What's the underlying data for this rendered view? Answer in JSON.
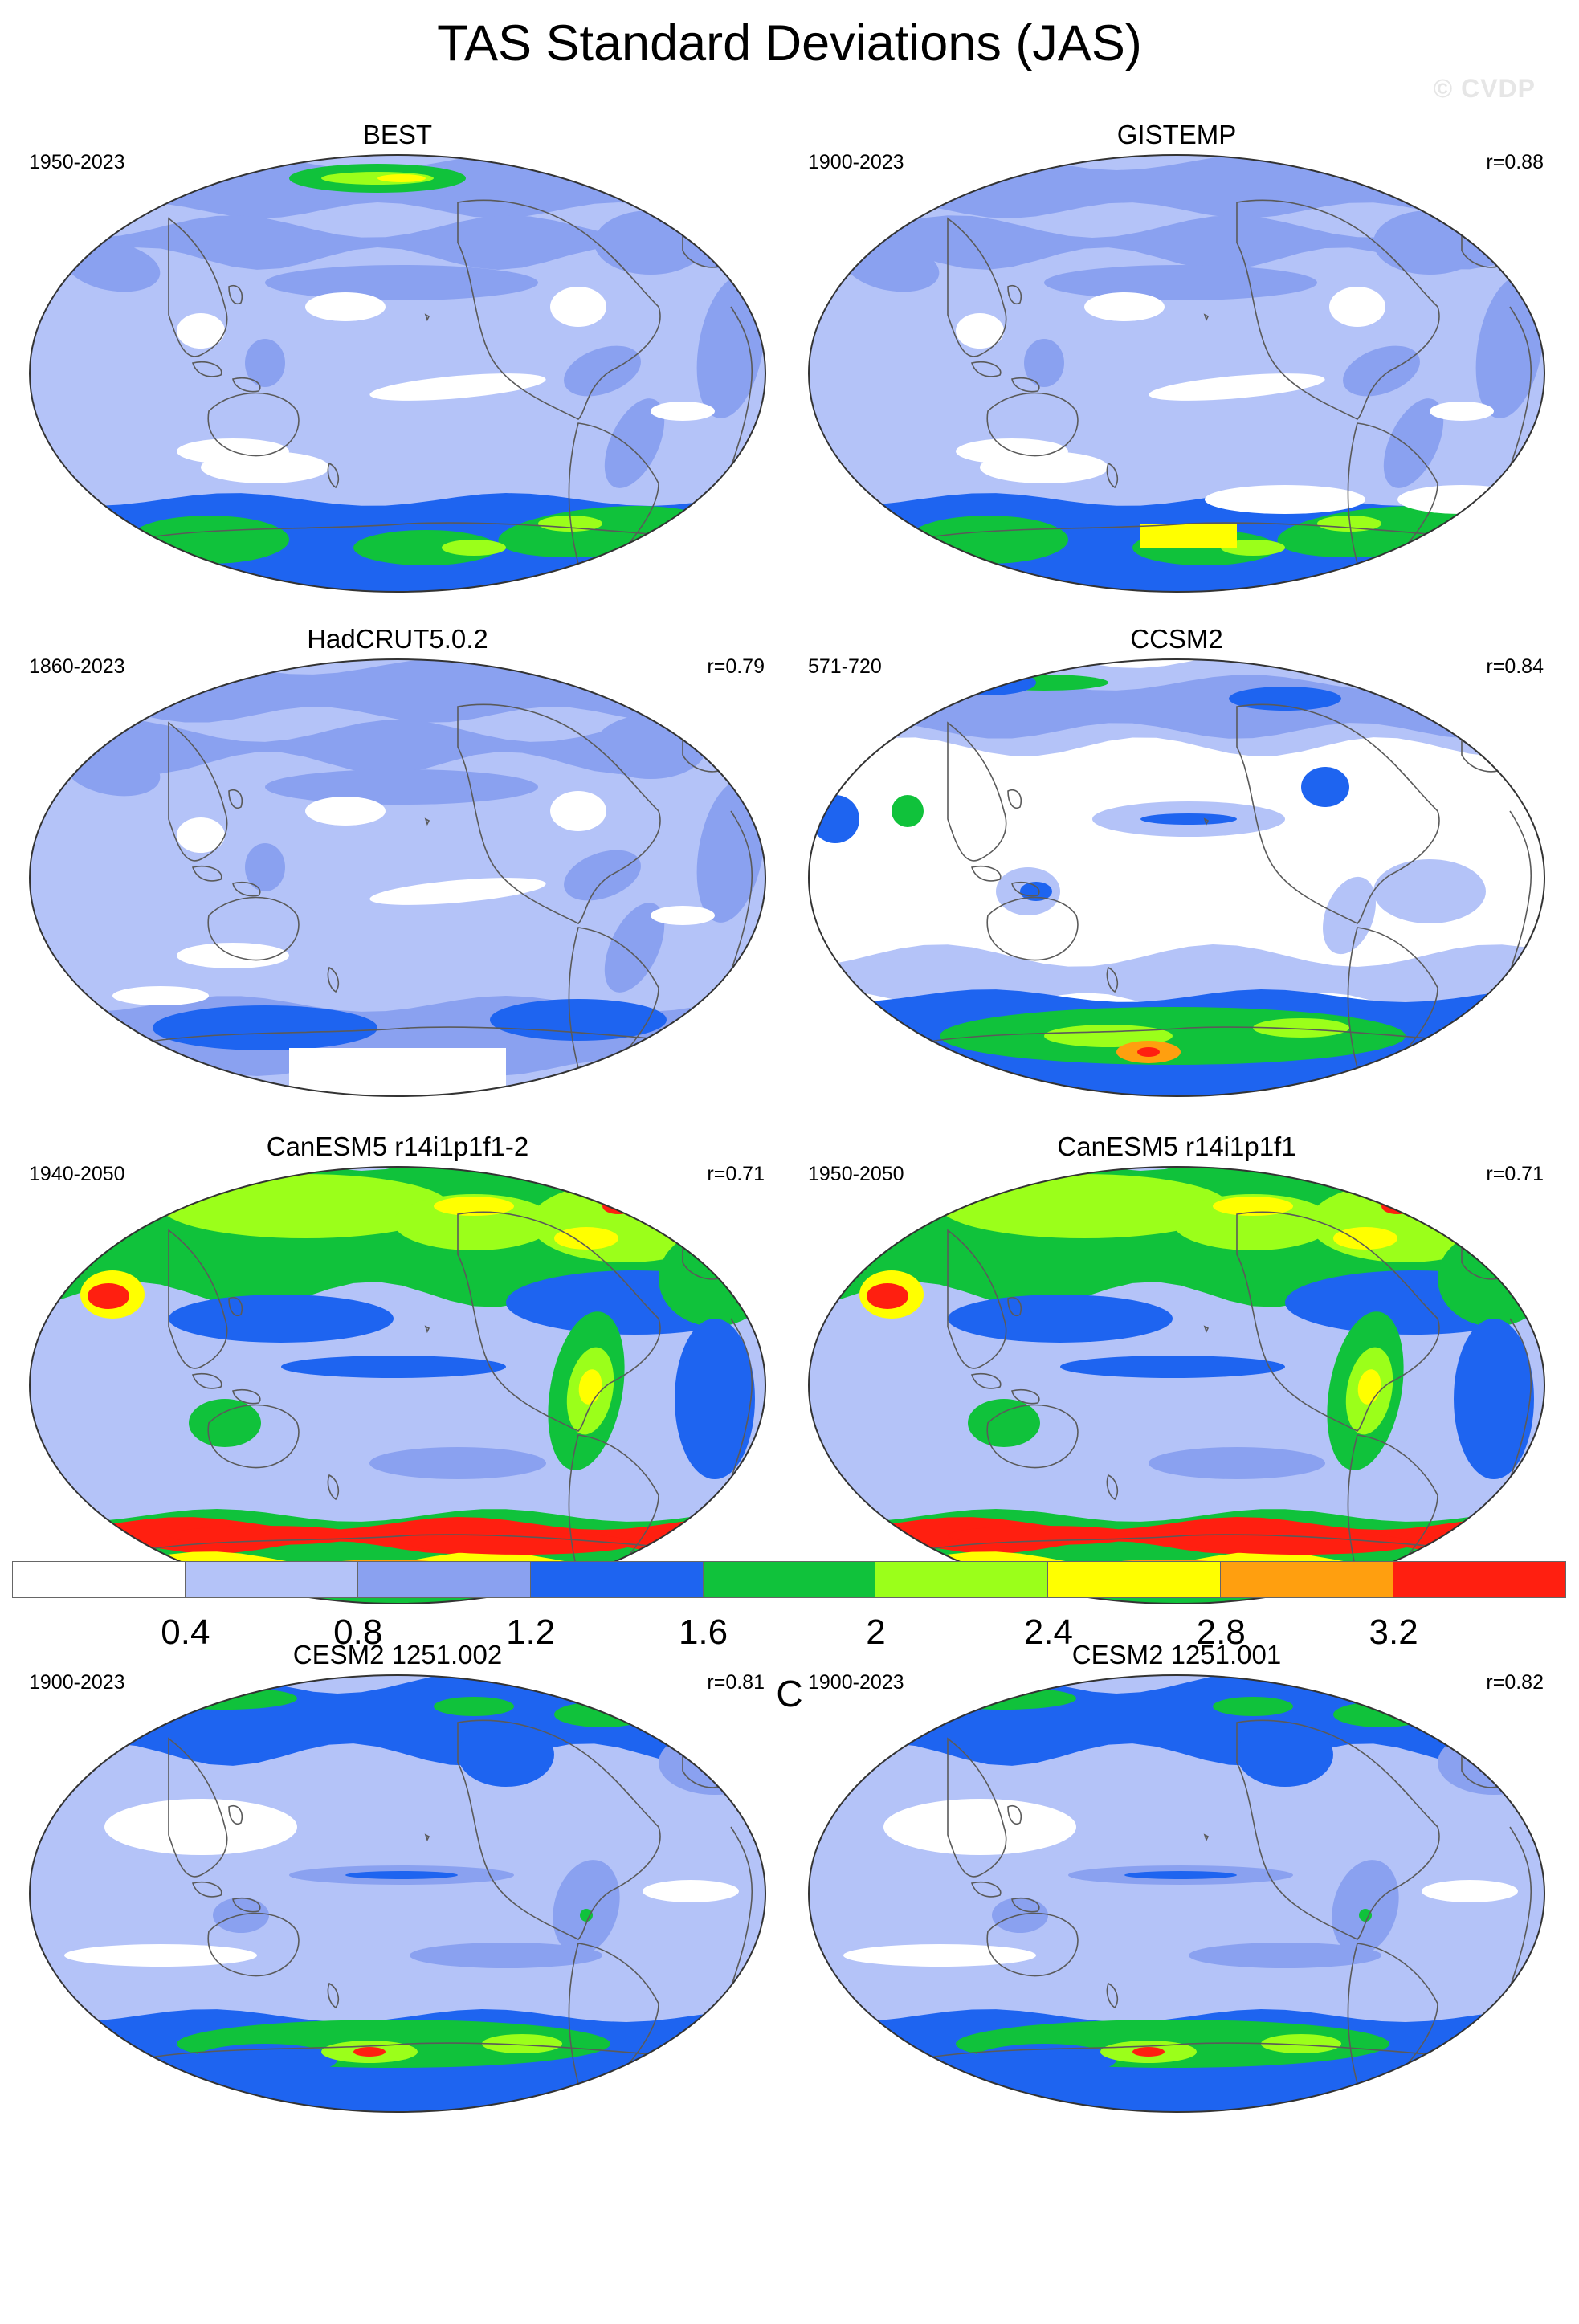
{
  "title": "TAS Standard Deviations (JAS)",
  "watermark": "© CVDP",
  "colors": {
    "white": "#ffffff",
    "c1": "#b4c3f8",
    "c2": "#8aa1f0",
    "c3": "#1e64f0",
    "c4": "#10c23b",
    "c5": "#9bff1a",
    "c6": "#ffff00",
    "c7": "#ff9f0f",
    "c8": "#ff1f10",
    "coast": "#5a5a5a"
  },
  "panels": [
    {
      "id": "best",
      "title": "BEST",
      "period": "1950-2023",
      "corr": ""
    },
    {
      "id": "gistemp",
      "title": "GISTEMP",
      "period": "1900-2023",
      "corr": "r=0.88"
    },
    {
      "id": "hadcrut",
      "title": "HadCRUT5.0.2",
      "period": "1860-2023",
      "corr": "r=0.79"
    },
    {
      "id": "ccsm2",
      "title": "CCSM2",
      "period": "571-720",
      "corr": "r=0.84"
    },
    {
      "id": "canesm5a",
      "title": "CanESM5 r14i1p1f1-2",
      "period": "1940-2050",
      "corr": "r=0.71"
    },
    {
      "id": "canesm5b",
      "title": "CanESM5 r14i1p1f1",
      "period": "1950-2050",
      "corr": "r=0.71"
    },
    {
      "id": "cesm2a",
      "title": "CESM2 1251.002",
      "period": "1900-2023",
      "corr": "r=0.81"
    },
    {
      "id": "cesm2b",
      "title": "CESM2 1251.001",
      "period": "1900-2023",
      "corr": "r=0.82"
    }
  ],
  "colorbar": {
    "colors": [
      "#ffffff",
      "#b4c3f8",
      "#8aa1f0",
      "#1e64f0",
      "#10c23b",
      "#9bff1a",
      "#ffff00",
      "#ff9f0f",
      "#ff1f10"
    ],
    "ticks": [
      "0.4",
      "0.8",
      "1.2",
      "1.6",
      "2",
      "2.4",
      "2.8",
      "3.2"
    ],
    "unit": "C"
  }
}
